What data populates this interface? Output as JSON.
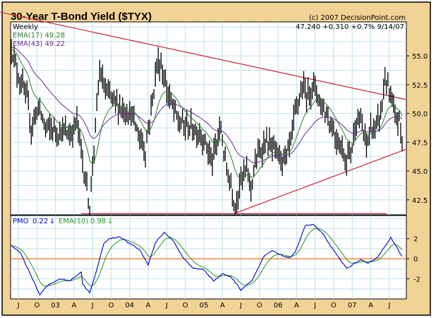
{
  "header": {
    "title": "30-Year T-Bond Yield ($TYX)",
    "copyright": "(c) 2007 DecisionPoint.com"
  },
  "colors": {
    "background": "#F2D396",
    "grid": "#BFE0EE",
    "bars": "#000000",
    "ema17": "#2E7D2E",
    "ema43": "#6A2A8C",
    "trendline": "#CC2233",
    "pmo": "#0000CC",
    "pmo_ema": "#229922",
    "zero_line": "#F07020"
  },
  "chart_data": [
    {
      "type": "bar",
      "subtype": "ohlc-weekly",
      "title": "30-Year T-Bond Yield ($TYX)",
      "period_label": "Weekly",
      "quote": "47.240 +0.310 +0.7% 9/14/07",
      "legend": [
        {
          "key": "ema17",
          "text": "EMA(17) 49.28"
        },
        {
          "key": "ema43",
          "text": "EMA(43) 49.22"
        }
      ],
      "ylim": [
        41.2,
        57.95
      ],
      "yticks": [
        "55.0",
        "52.5",
        "50.0",
        "47.5",
        "45.0",
        "42.5"
      ],
      "ytick_values": [
        55,
        52.5,
        50,
        47.5,
        45,
        42.5
      ],
      "grid_step": 1.25,
      "weeks": 275,
      "close_anchors": [
        [
          0,
          55.9
        ],
        [
          4,
          53.7
        ],
        [
          11,
          51.2
        ],
        [
          14,
          48.8
        ],
        [
          19,
          50.6
        ],
        [
          24,
          48.8
        ],
        [
          32,
          48.5
        ],
        [
          42,
          48.2
        ],
        [
          46,
          49.4
        ],
        [
          51,
          45.1
        ],
        [
          55,
          42
        ],
        [
          59,
          48.8
        ],
        [
          62,
          53.7
        ],
        [
          66,
          51.9
        ],
        [
          71,
          51.2
        ],
        [
          76,
          50.6
        ],
        [
          84,
          50
        ],
        [
          89,
          48.2
        ],
        [
          94,
          46.9
        ],
        [
          99,
          51.2
        ],
        [
          102,
          54.3
        ],
        [
          105,
          54.3
        ],
        [
          108,
          52.5
        ],
        [
          113,
          50.6
        ],
        [
          118,
          49.1
        ],
        [
          126,
          48.8
        ],
        [
          133,
          48.2
        ],
        [
          138,
          46.9
        ],
        [
          141,
          45.7
        ],
        [
          143,
          46.9
        ],
        [
          147,
          48.8
        ],
        [
          150,
          45.7
        ],
        [
          154,
          43.9
        ],
        [
          157,
          42
        ],
        [
          160,
          43.9
        ],
        [
          165,
          45.1
        ],
        [
          168,
          43.6
        ],
        [
          171,
          45.7
        ],
        [
          178,
          47.6
        ],
        [
          183,
          46.9
        ],
        [
          188,
          46.3
        ],
        [
          193,
          46
        ],
        [
          196,
          47.6
        ],
        [
          200,
          50.6
        ],
        [
          204,
          52.2
        ],
        [
          207,
          51.6
        ],
        [
          212,
          52.5
        ],
        [
          217,
          50.9
        ],
        [
          222,
          49.7
        ],
        [
          227,
          48.2
        ],
        [
          232,
          46.9
        ],
        [
          235,
          46
        ],
        [
          239,
          47.2
        ],
        [
          242,
          49.7
        ],
        [
          246,
          48.8
        ],
        [
          249,
          47.2
        ],
        [
          252,
          48.8
        ],
        [
          255,
          48.5
        ],
        [
          259,
          50
        ],
        [
          262,
          53.1
        ],
        [
          264,
          52.2
        ],
        [
          267,
          50.6
        ],
        [
          269,
          49.7
        ],
        [
          272,
          49.4
        ],
        [
          273,
          48.5
        ],
        [
          274,
          47.24
        ]
      ],
      "trendlines": [
        {
          "name": "resistance",
          "from": [
            -8,
            58.8
          ],
          "to": [
            277,
            51.2
          ]
        },
        {
          "name": "support",
          "from": [
            156,
            41.3
          ],
          "to": [
            277,
            46.9
          ]
        },
        {
          "name": "horizontal-low",
          "from": [
            49,
            41.3
          ],
          "to": [
            263,
            41.3
          ]
        }
      ]
    },
    {
      "type": "line",
      "title": "PMO",
      "legend": [
        {
          "key": "pmo",
          "label": "PMO",
          "value": "0.22",
          "arrow": "down"
        },
        {
          "key": "pmo_ema",
          "label": "EMA(10)",
          "value": "0.98",
          "arrow": "down"
        }
      ],
      "ylim": [
        -4.0,
        4.3
      ],
      "yticks": [
        "2",
        "0",
        "-2"
      ],
      "ytick_values": [
        2,
        0,
        -2
      ],
      "grid_step": 1,
      "pmo_anchors": [
        [
          0,
          1.3
        ],
        [
          6,
          0.7
        ],
        [
          13,
          -1.4
        ],
        [
          20,
          -3.6
        ],
        [
          24,
          -2.8
        ],
        [
          29,
          -2.4
        ],
        [
          34,
          -2.0
        ],
        [
          41,
          -2.2
        ],
        [
          49,
          -1.3
        ],
        [
          50,
          -2.5
        ],
        [
          55,
          -3.4
        ],
        [
          59,
          -1.6
        ],
        [
          65,
          1.6
        ],
        [
          69,
          2.0
        ],
        [
          76,
          2.2
        ],
        [
          82,
          1.6
        ],
        [
          90,
          0.9
        ],
        [
          96,
          -0.6
        ],
        [
          101,
          1.6
        ],
        [
          107,
          2.6
        ],
        [
          113,
          1.9
        ],
        [
          121,
          0
        ],
        [
          127,
          -0.9
        ],
        [
          135,
          -1.1
        ],
        [
          142,
          -2.2
        ],
        [
          148,
          -1.5
        ],
        [
          154,
          -1.8
        ],
        [
          161,
          -3.1
        ],
        [
          169,
          -2.1
        ],
        [
          177,
          0.2
        ],
        [
          183,
          0.8
        ],
        [
          189,
          0.35
        ],
        [
          195,
          0.1
        ],
        [
          199,
          0.6
        ],
        [
          206,
          3.3
        ],
        [
          212,
          3.4
        ],
        [
          219,
          2.35
        ],
        [
          226,
          0.8
        ],
        [
          235,
          -0.95
        ],
        [
          245,
          -0.1
        ],
        [
          250,
          -0.5
        ],
        [
          257,
          0.2
        ],
        [
          266,
          2.1
        ],
        [
          274,
          0.22
        ]
      ],
      "xticks": [
        "J",
        "O",
        "03",
        "A",
        "J",
        "O",
        "04",
        "A",
        "J",
        "O",
        "05",
        "A",
        "J",
        "O",
        "06",
        "A",
        "J",
        "O",
        "07",
        "A",
        "J"
      ],
      "xtick_weeks": [
        5,
        18,
        31,
        44,
        57,
        70,
        83,
        96,
        109,
        122,
        135,
        148,
        161,
        174,
        187,
        200,
        213,
        226,
        239,
        252,
        265
      ]
    }
  ]
}
